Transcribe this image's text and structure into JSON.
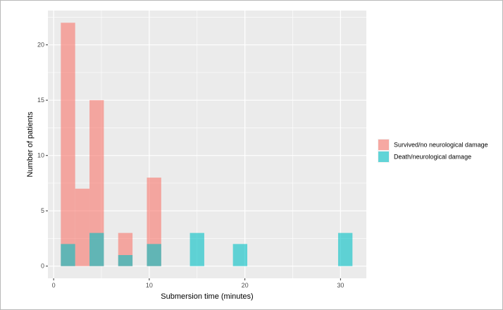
{
  "chart_data": {
    "type": "bar",
    "subtype": "overlaid-histogram",
    "xlabel": "Submersion time (minutes)",
    "ylabel": "Number of patients",
    "xlim": [
      -0.6,
      32.7
    ],
    "ylim": [
      -1.1,
      23.1
    ],
    "x_ticks": [
      0,
      10,
      20,
      30
    ],
    "y_ticks": [
      0,
      5,
      10,
      15,
      20
    ],
    "bin_width": 1.5,
    "grid": true,
    "legend_position": "right",
    "series": [
      {
        "name": "Survived/no neurological damage",
        "color": "#F8766D",
        "bins": [
          {
            "x0": 0.75,
            "x1": 2.25,
            "count": 22
          },
          {
            "x0": 2.25,
            "x1": 3.75,
            "count": 7
          },
          {
            "x0": 3.75,
            "x1": 5.25,
            "count": 15
          },
          {
            "x0": 6.75,
            "x1": 8.25,
            "count": 3
          },
          {
            "x0": 9.75,
            "x1": 11.25,
            "count": 8
          }
        ]
      },
      {
        "name": "Death/neurological damage",
        "color": "#00BFC4",
        "bins": [
          {
            "x0": 0.75,
            "x1": 2.25,
            "count": 2
          },
          {
            "x0": 3.75,
            "x1": 5.25,
            "count": 3
          },
          {
            "x0": 6.75,
            "x1": 8.25,
            "count": 1
          },
          {
            "x0": 9.75,
            "x1": 11.25,
            "count": 2
          },
          {
            "x0": 14.25,
            "x1": 15.75,
            "count": 3
          },
          {
            "x0": 18.75,
            "x1": 20.25,
            "count": 2
          },
          {
            "x0": 29.75,
            "x1": 31.25,
            "count": 3
          }
        ]
      }
    ]
  }
}
